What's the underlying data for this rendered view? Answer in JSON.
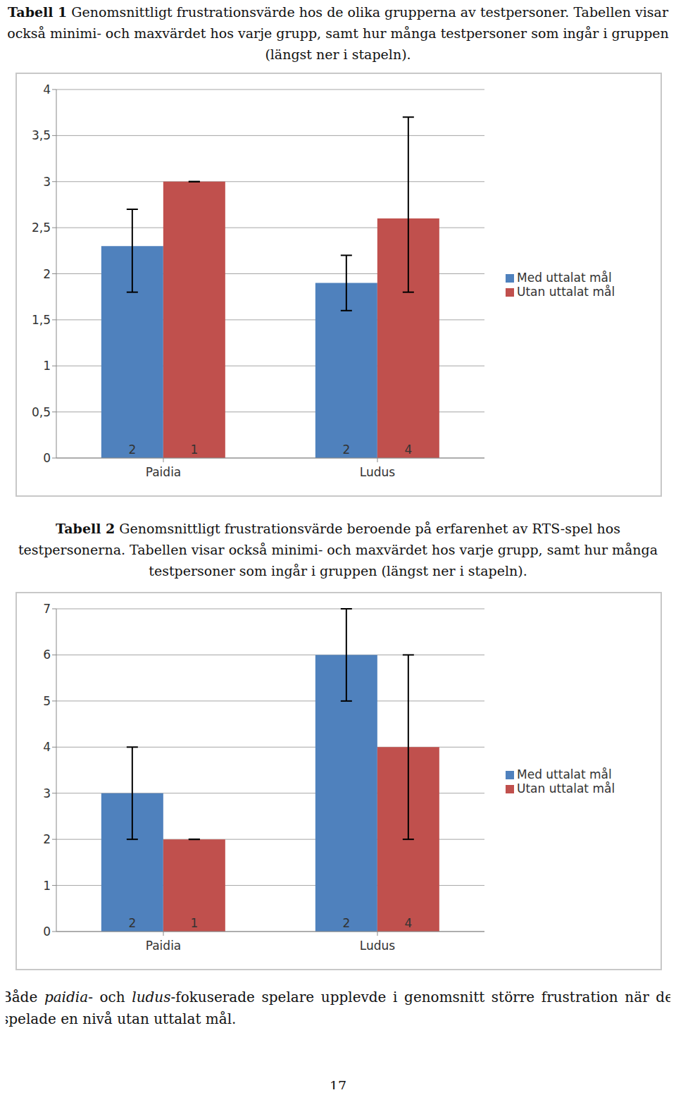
{
  "chart_data": [
    {
      "type": "bar",
      "title": "Tabell 1 Genomsnittligt frustrationsvärde hos de olika grupperna av testpersoner. Tabellen visar också minimi- och maxvärdet hos varje grupp, samt hur många testpersoner som ingår i gruppen (längst ner i stapeln).",
      "categories": [
        "Paidia",
        "Ludus"
      ],
      "series": [
        {
          "name": "Med uttalat mål",
          "color": "#4f81bd",
          "values": [
            2.3,
            1.9
          ],
          "min": [
            1.8,
            1.6
          ],
          "max": [
            2.7,
            2.2
          ],
          "n": [
            2,
            2
          ]
        },
        {
          "name": "Utan uttalat mål",
          "color": "#c0504d",
          "values": [
            3,
            2.6
          ],
          "min": [
            3,
            1.8
          ],
          "max": [
            3,
            3.7
          ],
          "n": [
            1,
            4
          ]
        }
      ],
      "ylim": [
        0,
        4
      ],
      "yticks": [
        0,
        {
          "value": 0.5,
          "label": "0,5"
        },
        1,
        {
          "value": 1.5,
          "label": "1,5"
        },
        2,
        {
          "value": 2.5,
          "label": "2,5"
        },
        3,
        {
          "value": 3.5,
          "label": "3,5"
        },
        4
      ],
      "grid": true,
      "legend": "right"
    },
    {
      "type": "bar",
      "title": "Tabell 2 Genomsnittligt frustrationsvärde beroende på erfarenhet av RTS-spel hos testpersonerna. Tabellen visar också minimi- och maxvärdet hos varje grupp, samt hur många testpersoner som ingår i gruppen (längst ner i stapeln).",
      "categories": [
        "Paidia",
        "Ludus"
      ],
      "series": [
        {
          "name": "Med uttalat mål",
          "color": "#4f81bd",
          "values": [
            3,
            6
          ],
          "min": [
            2,
            5
          ],
          "max": [
            4,
            7
          ],
          "n": [
            2,
            2
          ]
        },
        {
          "name": "Utan uttalat mål",
          "color": "#c0504d",
          "values": [
            2,
            4
          ],
          "min": [
            2,
            2
          ],
          "max": [
            2,
            6
          ],
          "n": [
            1,
            4
          ]
        }
      ],
      "ylim": [
        0,
        7
      ],
      "yticks": [
        0,
        1,
        2,
        3,
        4,
        5,
        6,
        7
      ],
      "grid": true,
      "legend": "right"
    }
  ],
  "document": {
    "paragraph": [
      {
        "text": "Både "
      },
      {
        "text": "paidia",
        "italic": true
      },
      {
        "text": "- och "
      },
      {
        "text": "ludus",
        "italic": true
      },
      {
        "text": "-fokuserade spelare upplevde i genomsnitt större frustration när de spelade en nivå utan uttalat mål."
      }
    ],
    "page_number": "17"
  }
}
